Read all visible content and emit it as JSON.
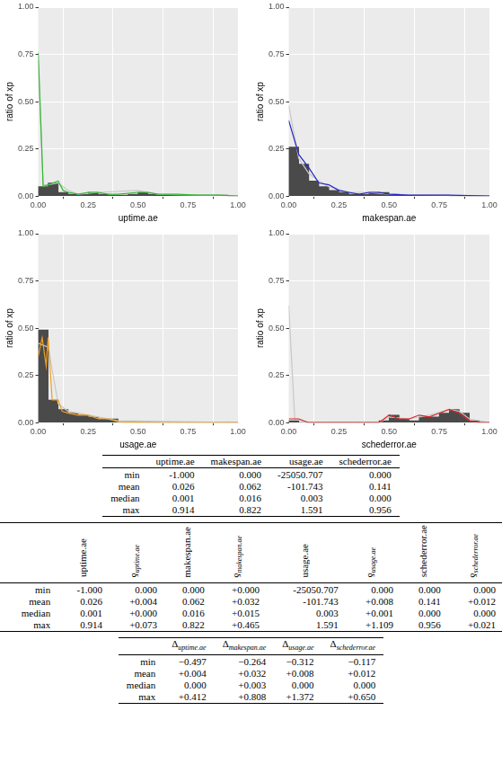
{
  "chart_data": [
    {
      "type": "bar",
      "x_label": "uptime.ae",
      "y_label": "ratio of xp",
      "grid": true,
      "xlim": [
        0,
        1
      ],
      "xticks": [
        {
          "value": 0,
          "label": "0.00"
        },
        {
          "value": 0.25,
          "label": "0.25"
        },
        {
          "value": 0.5,
          "label": "0.50"
        },
        {
          "value": 0.75,
          "label": "0.75"
        },
        {
          "value": 1,
          "label": "1.00"
        }
      ],
      "ylim": [
        0,
        1
      ],
      "yticks": [
        {
          "value": 0,
          "label": "0.00"
        },
        {
          "value": 0.25,
          "label": "0.25"
        },
        {
          "value": 0.5,
          "label": "0.50"
        },
        {
          "value": 0.75,
          "label": "0.75"
        },
        {
          "value": 1,
          "label": "1.00"
        }
      ],
      "series": [
        {
          "type": "bar",
          "color": "#4a4a4a",
          "bins": [
            0,
            0.05,
            0.1,
            0.15,
            0.2,
            0.25,
            0.3,
            0.35,
            0.4,
            0.45,
            0.5,
            0.55,
            0.6,
            0.65,
            0.7,
            0.75,
            0.8,
            0.85,
            0.9,
            0.95,
            1
          ],
          "values": [
            0.05,
            0.07,
            0.02,
            0.01,
            0.01,
            0.02,
            0.01,
            0.005,
            0.005,
            0.01,
            0.02,
            0.01,
            0.005,
            0.005,
            0.005,
            0.005,
            0.005,
            0.005,
            0.005,
            0
          ]
        },
        {
          "type": "line",
          "color": "#c8c8c8",
          "x": [
            0,
            0.025,
            0.05,
            0.1,
            0.15,
            0.2,
            0.3,
            0.5,
            0.6,
            0.8,
            1
          ],
          "values": [
            0.72,
            0.06,
            0.06,
            0.07,
            0.03,
            0.01,
            0.02,
            0.03,
            0.01,
            0.005,
            0
          ]
        },
        {
          "type": "line",
          "color": "#2db82d",
          "x": [
            0,
            0.025,
            0.05,
            0.075,
            0.1,
            0.125,
            0.15,
            0.2,
            0.25,
            0.3,
            0.35,
            0.4,
            0.5,
            0.55,
            0.6,
            0.7,
            0.8,
            0.9,
            1
          ],
          "values": [
            0.76,
            0.05,
            0.06,
            0.07,
            0.08,
            0.03,
            0.02,
            0.01,
            0.02,
            0.02,
            0.01,
            0.01,
            0.02,
            0.02,
            0.01,
            0.01,
            0.005,
            0.005,
            0
          ]
        }
      ]
    },
    {
      "type": "bar",
      "x_label": "makespan.ae",
      "y_label": "ratio of xp",
      "grid": true,
      "xlim": [
        0,
        1
      ],
      "xticks": [
        {
          "value": 0,
          "label": "0.00"
        },
        {
          "value": 0.25,
          "label": "0.25"
        },
        {
          "value": 0.5,
          "label": "0.50"
        },
        {
          "value": 0.75,
          "label": "0.75"
        },
        {
          "value": 1,
          "label": "1.00"
        }
      ],
      "ylim": [
        0,
        1
      ],
      "yticks": [
        {
          "value": 0,
          "label": "0.00"
        },
        {
          "value": 0.25,
          "label": "0.25"
        },
        {
          "value": 0.5,
          "label": "0.50"
        },
        {
          "value": 0.75,
          "label": "0.75"
        },
        {
          "value": 1,
          "label": "1.00"
        }
      ],
      "series": [
        {
          "type": "bar",
          "color": "#4a4a4a",
          "bins": [
            0,
            0.05,
            0.1,
            0.15,
            0.2,
            0.25,
            0.3,
            0.35,
            0.4,
            0.45,
            0.5,
            0.55,
            0.6,
            0.65,
            0.7,
            0.75,
            0.8,
            0.85,
            0.9,
            0.95,
            1
          ],
          "values": [
            0.26,
            0.17,
            0.08,
            0.05,
            0.03,
            0.02,
            0.01,
            0.01,
            0.02,
            0.02,
            0.01,
            0.005,
            0.005,
            0.005,
            0.005,
            0.005,
            0,
            0,
            0,
            0
          ]
        },
        {
          "type": "line",
          "color": "#c8c8c8",
          "x": [
            0,
            0.05,
            0.1,
            0.15,
            0.2,
            0.3,
            0.4,
            0.5,
            0.7,
            1
          ],
          "values": [
            0.48,
            0.2,
            0.12,
            0.08,
            0.05,
            0.02,
            0.02,
            0.01,
            0.005,
            0
          ]
        },
        {
          "type": "line",
          "color": "#2424c8",
          "x": [
            0,
            0.05,
            0.1,
            0.15,
            0.2,
            0.25,
            0.3,
            0.35,
            0.4,
            0.45,
            0.5,
            0.6,
            0.8,
            1
          ],
          "values": [
            0.4,
            0.22,
            0.15,
            0.07,
            0.06,
            0.03,
            0.02,
            0.01,
            0.02,
            0.02,
            0.01,
            0.005,
            0.005,
            0
          ]
        }
      ]
    },
    {
      "type": "bar",
      "x_label": "usage.ae",
      "y_label": "ratio of xp",
      "grid": true,
      "xlim": [
        0,
        1
      ],
      "xticks": [
        {
          "value": 0,
          "label": "0.00"
        },
        {
          "value": 0.25,
          "label": "0.25"
        },
        {
          "value": 0.5,
          "label": "0.50"
        },
        {
          "value": 0.75,
          "label": "0.75"
        },
        {
          "value": 1,
          "label": "1.00"
        }
      ],
      "ylim": [
        0,
        1
      ],
      "yticks": [
        {
          "value": 0,
          "label": "0.00"
        },
        {
          "value": 0.25,
          "label": "0.25"
        },
        {
          "value": 0.5,
          "label": "0.50"
        },
        {
          "value": 0.75,
          "label": "0.75"
        },
        {
          "value": 1,
          "label": "1.00"
        }
      ],
      "series": [
        {
          "type": "bar",
          "color": "#4a4a4a",
          "bins": [
            0,
            0.05,
            0.1,
            0.15,
            0.2,
            0.25,
            0.3,
            0.35,
            0.4,
            0.45,
            0.5,
            0.55,
            0.6,
            0.65,
            0.7,
            0.75,
            0.8,
            0.85,
            0.9,
            0.95,
            1
          ],
          "values": [
            0.49,
            0.12,
            0.07,
            0.05,
            0.04,
            0.03,
            0.02,
            0.02,
            0,
            0,
            0,
            0,
            0,
            0,
            0,
            0,
            0,
            0,
            0,
            0
          ]
        },
        {
          "type": "line",
          "color": "#c8c8c8",
          "x": [
            0,
            0.05,
            0.1,
            0.15,
            0.2,
            0.3,
            0.4,
            1
          ],
          "values": [
            0.42,
            0.4,
            0.1,
            0.06,
            0.05,
            0.03,
            0.01,
            0
          ]
        },
        {
          "type": "line",
          "color": "#f0a020",
          "x": [
            0,
            0.02,
            0.04,
            0.05,
            0.07,
            0.1,
            0.12,
            0.15,
            0.2,
            0.25,
            0.3,
            0.35,
            0.4,
            0.6,
            1
          ],
          "values": [
            0.35,
            0.45,
            0.3,
            0.45,
            0.12,
            0.12,
            0.06,
            0.05,
            0.04,
            0.04,
            0.02,
            0.02,
            0.005,
            0,
            0
          ]
        }
      ]
    },
    {
      "type": "bar",
      "x_label": "schederror.ae",
      "y_label": "ratio of xp",
      "grid": true,
      "xlim": [
        0,
        1
      ],
      "xticks": [
        {
          "value": 0,
          "label": "0.00"
        },
        {
          "value": 0.25,
          "label": "0.25"
        },
        {
          "value": 0.5,
          "label": "0.50"
        },
        {
          "value": 0.75,
          "label": "0.75"
        },
        {
          "value": 1,
          "label": "1.00"
        }
      ],
      "ylim": [
        0,
        1
      ],
      "yticks": [
        {
          "value": 0,
          "label": "0.00"
        },
        {
          "value": 0.25,
          "label": "0.25"
        },
        {
          "value": 0.5,
          "label": "0.50"
        },
        {
          "value": 0.75,
          "label": "0.75"
        },
        {
          "value": 1,
          "label": "1.00"
        }
      ],
      "series": [
        {
          "type": "bar",
          "color": "#4a4a4a",
          "bins": [
            0,
            0.05,
            0.1,
            0.15,
            0.2,
            0.25,
            0.3,
            0.35,
            0.4,
            0.45,
            0.5,
            0.55,
            0.6,
            0.65,
            0.7,
            0.75,
            0.8,
            0.85,
            0.9,
            0.95,
            1
          ],
          "values": [
            0.01,
            0,
            0,
            0,
            0,
            0,
            0,
            0,
            0,
            0.01,
            0.04,
            0.02,
            0.01,
            0.03,
            0.03,
            0.05,
            0.07,
            0.05,
            0.01,
            0
          ]
        },
        {
          "type": "line",
          "color": "#c8c8c8",
          "x": [
            0,
            0.03,
            0.1,
            0.45,
            0.5,
            0.6,
            0.7,
            0.8,
            0.85,
            0.9,
            1
          ],
          "values": [
            0.62,
            0.02,
            0,
            0,
            0.03,
            0.02,
            0.04,
            0.07,
            0.06,
            0.02,
            0
          ]
        },
        {
          "type": "line",
          "color": "#e02424",
          "x": [
            0,
            0.05,
            0.1,
            0.45,
            0.5,
            0.55,
            0.6,
            0.65,
            0.7,
            0.75,
            0.8,
            0.85,
            0.9,
            0.95,
            1
          ],
          "values": [
            0.02,
            0.02,
            0,
            0,
            0.04,
            0.02,
            0.02,
            0.04,
            0.03,
            0.05,
            0.07,
            0.05,
            0.01,
            0,
            0
          ]
        }
      ]
    }
  ],
  "tables": [
    {
      "header": [
        "",
        "uptime.ae",
        "makespan.ae",
        "usage.ae",
        "schederror.ae"
      ],
      "rows": [
        [
          "min",
          "-1.000",
          "0.000",
          "-25050.707",
          "0.000"
        ],
        [
          "mean",
          "0.026",
          "0.062",
          "-101.743",
          "0.141"
        ],
        [
          "median",
          "0.001",
          "0.016",
          "0.003",
          "0.000"
        ],
        [
          "max",
          "0.914",
          "0.822",
          "1.591",
          "0.956"
        ]
      ]
    },
    {
      "header": [
        "",
        "uptime.ae",
        {
          "symbol": "δ",
          "sub": "uptime.ae"
        },
        "makespan.ae",
        {
          "symbol": "δ",
          "sub": "makespan.ae"
        },
        "usage.ae",
        {
          "symbol": "δ",
          "sub": "usage.ae"
        },
        "schederror.ae",
        {
          "symbol": "δ",
          "sub": "schederror.ae"
        }
      ],
      "rows": [
        [
          "min",
          "-1.000",
          "0.000",
          "0.000",
          "+0.000",
          "-25050.707",
          "0.000",
          "0.000",
          "0.000"
        ],
        [
          "mean",
          "0.026",
          "+0.004",
          "0.062",
          "+0.032",
          "-101.743",
          "+0.008",
          "0.141",
          "+0.012"
        ],
        [
          "median",
          "0.001",
          "+0.000",
          "0.016",
          "+0.015",
          "0.003",
          "+0.001",
          "0.000",
          "0.000"
        ],
        [
          "max",
          "0.914",
          "+0.073",
          "0.822",
          "+0.465",
          "1.591",
          "+1.109",
          "0.956",
          "+0.021"
        ]
      ]
    },
    {
      "header": [
        "",
        {
          "symbol": "Δ",
          "sub": "uptime.ae"
        },
        {
          "symbol": "Δ",
          "sub": "makespan.ae"
        },
        {
          "symbol": "Δ",
          "sub": "usage.ae"
        },
        {
          "symbol": "Δ",
          "sub": "schederror.ae"
        }
      ],
      "rows": [
        [
          "min",
          "−0.497",
          "−0.264",
          "−0.312",
          "−0.117"
        ],
        [
          "mean",
          "+0.004",
          "+0.032",
          "+0.008",
          "+0.012"
        ],
        [
          "median",
          "0.000",
          "+0.003",
          "0.000",
          "0.000"
        ],
        [
          "max",
          "+0.412",
          "+0.808",
          "+1.372",
          "+0.650"
        ]
      ]
    }
  ]
}
